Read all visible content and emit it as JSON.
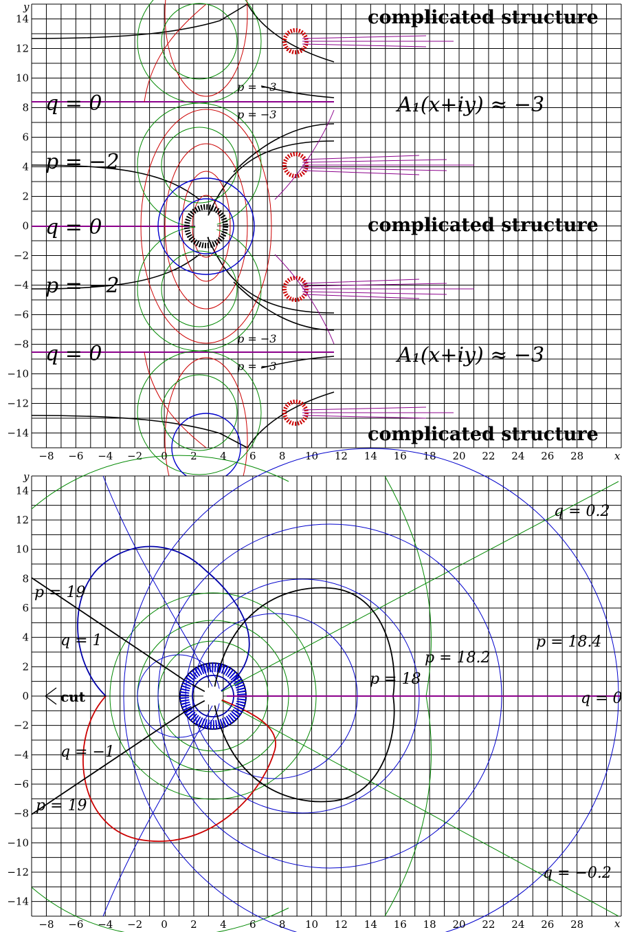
{
  "panels": [
    {
      "id": "top",
      "axis_x_name": "x",
      "axis_y_name": "y",
      "x_ticks": [
        "−8",
        "−6",
        "−4",
        "−2",
        "0",
        "2",
        "4",
        "6",
        "8",
        "10",
        "12",
        "14",
        "16",
        "18",
        "20",
        "22",
        "24",
        "26",
        "28"
      ],
      "y_ticks": [
        "14",
        "12",
        "10",
        "8",
        "6",
        "4",
        "2",
        "0",
        "−2",
        "−4",
        "−6",
        "−8",
        "−10",
        "−12",
        "−14"
      ],
      "labels": {
        "complicated_1": "complicated structure",
        "complicated_2": "complicated structure",
        "complicated_3": "complicated structure",
        "a1_upper": "A₁(x+iy) ≈ −3",
        "a1_lower": "A₁(x+iy) ≈ −3",
        "q0_upper": "q = 0",
        "q0_mid": "q = 0",
        "q0_lower": "q = 0",
        "pm2_upper": "p = −2",
        "pm2_lower": "p = −2",
        "pm3_a": "p = −3",
        "pm3_b": "p = −3",
        "pm3_c": "p = −3",
        "pm3_d": "p = −3"
      }
    },
    {
      "id": "bottom",
      "axis_x_name": "x",
      "axis_y_name": "y",
      "x_ticks": [
        "−8",
        "−6",
        "−4",
        "−2",
        "0",
        "2",
        "4",
        "6",
        "8",
        "10",
        "12",
        "14",
        "16",
        "18",
        "20",
        "22",
        "24",
        "26",
        "28"
      ],
      "y_ticks": [
        "14",
        "12",
        "10",
        "8",
        "6",
        "4",
        "2",
        "0",
        "−2",
        "−4",
        "−6",
        "−8",
        "−10",
        "−12",
        "−14"
      ],
      "labels": {
        "q02": "q = 0.2",
        "qm02": "q = −0.2",
        "p19_upper": "p = 19",
        "p19_lower": "p = 19",
        "q1": "q = 1",
        "qm1": "q = −1",
        "cut": "cut",
        "p182": "p = 18.2",
        "p184": "p = 18.4",
        "p18": "p = 18",
        "q0": "q = 0"
      }
    }
  ],
  "colors": {
    "grid": "#000000",
    "p_lines": "#cc0000",
    "q_lines": "#008800",
    "level_lines": "#0000cc",
    "purple_lines": "#8b008b",
    "main_curves": "#000000"
  }
}
